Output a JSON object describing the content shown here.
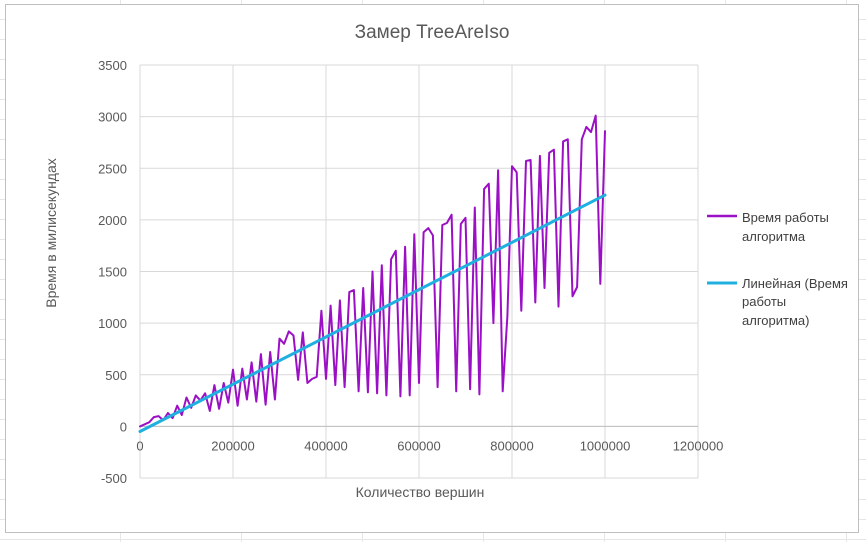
{
  "chart_data": {
    "type": "line",
    "title": "Замер TreeAreIso",
    "xlabel": "Количество вершин",
    "ylabel": "Время в милисекундах",
    "xlim": [
      0,
      1200000
    ],
    "ylim": [
      -500,
      3500
    ],
    "x_ticks": [
      "0",
      "200000",
      "400000",
      "600000",
      "800000",
      "1000000",
      "1200000"
    ],
    "y_ticks": [
      "-500",
      "0",
      "500",
      "1000",
      "1500",
      "2000",
      "2500",
      "3000",
      "3500"
    ],
    "grid": true,
    "legend_position": "right",
    "colors": {
      "measured": "#9b10c4",
      "trend": "#1fb0e0"
    },
    "series": [
      {
        "name": "Время работы алгоритма",
        "x": [
          0,
          10000,
          20000,
          30000,
          40000,
          50000,
          60000,
          70000,
          80000,
          90000,
          100000,
          110000,
          120000,
          130000,
          140000,
          150000,
          160000,
          170000,
          180000,
          190000,
          200000,
          210000,
          220000,
          230000,
          240000,
          250000,
          260000,
          270000,
          280000,
          290000,
          300000,
          310000,
          320000,
          330000,
          340000,
          350000,
          360000,
          370000,
          380000,
          390000,
          400000,
          410000,
          420000,
          430000,
          440000,
          450000,
          460000,
          470000,
          480000,
          490000,
          500000,
          510000,
          520000,
          530000,
          540000,
          550000,
          560000,
          570000,
          580000,
          590000,
          600000,
          610000,
          620000,
          630000,
          640000,
          650000,
          660000,
          670000,
          680000,
          690000,
          700000,
          710000,
          720000,
          730000,
          740000,
          750000,
          760000,
          770000,
          780000,
          790000,
          800000,
          810000,
          820000,
          830000,
          840000,
          850000,
          860000,
          870000,
          880000,
          890000,
          900000,
          910000,
          920000,
          930000,
          940000,
          950000,
          960000,
          970000,
          980000,
          990000,
          1000000
        ],
        "values": [
          0,
          20,
          40,
          90,
          100,
          60,
          130,
          80,
          200,
          110,
          280,
          180,
          300,
          250,
          320,
          150,
          400,
          170,
          420,
          230,
          550,
          200,
          560,
          260,
          620,
          240,
          700,
          210,
          720,
          260,
          850,
          800,
          920,
          880,
          450,
          910,
          420,
          460,
          480,
          1120,
          460,
          1170,
          400,
          1220,
          380,
          1300,
          1320,
          340,
          1340,
          330,
          1500,
          320,
          1560,
          300,
          1620,
          1700,
          290,
          1740,
          300,
          1860,
          420,
          1880,
          1920,
          1850,
          380,
          1950,
          1970,
          2050,
          340,
          1960,
          2020,
          360,
          2120,
          310,
          2300,
          2350,
          1000,
          2480,
          340,
          1070,
          2520,
          2460,
          1120,
          2570,
          2580,
          1200,
          2620,
          1340,
          2650,
          2680,
          1160,
          2760,
          2780,
          1260,
          1350,
          2780,
          2900,
          2850,
          3010,
          1380,
          2860
        ]
      },
      {
        "name": "Линейная (Время работы алгоритма)",
        "x": [
          0,
          1000000
        ],
        "values": [
          -50,
          2240
        ]
      }
    ]
  }
}
